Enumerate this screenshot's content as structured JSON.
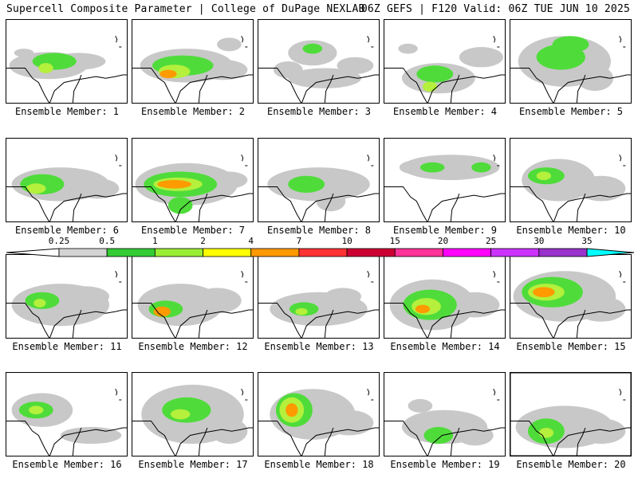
{
  "header": {
    "left": "Supercell Composite Parameter | College of DuPage NEXLAB",
    "right": "06Z GEFS | F120 Valid: 06Z TUE JUN 10 2025"
  },
  "panels": [
    {
      "label": "Ensemble Member: 1",
      "col": 0,
      "row": 0,
      "blobs": [
        [
          0.35,
          0.55,
          0.32,
          0.16,
          1
        ],
        [
          0.4,
          0.5,
          0.18,
          0.1,
          2
        ],
        [
          0.33,
          0.58,
          0.06,
          0.06,
          3
        ],
        [
          0.6,
          0.5,
          0.22,
          0.1,
          1
        ],
        [
          0.15,
          0.4,
          0.08,
          0.05,
          1
        ]
      ]
    },
    {
      "label": "Ensemble Member: 2",
      "col": 1,
      "row": 0,
      "blobs": [
        [
          0.45,
          0.55,
          0.38,
          0.2,
          1
        ],
        [
          0.42,
          0.55,
          0.25,
          0.12,
          2
        ],
        [
          0.35,
          0.62,
          0.13,
          0.08,
          3
        ],
        [
          0.3,
          0.65,
          0.07,
          0.05,
          4
        ],
        [
          0.75,
          0.6,
          0.2,
          0.12,
          1
        ],
        [
          0.8,
          0.3,
          0.1,
          0.08,
          1
        ]
      ]
    },
    {
      "label": "Ensemble Member: 3",
      "col": 2,
      "row": 0,
      "blobs": [
        [
          0.45,
          0.4,
          0.2,
          0.15,
          1
        ],
        [
          0.45,
          0.35,
          0.08,
          0.06,
          2
        ],
        [
          0.55,
          0.7,
          0.3,
          0.12,
          1
        ],
        [
          0.25,
          0.6,
          0.12,
          0.1,
          1
        ],
        [
          0.8,
          0.55,
          0.15,
          0.1,
          1
        ]
      ]
    },
    {
      "label": "Ensemble Member: 4",
      "col": 3,
      "row": 0,
      "blobs": [
        [
          0.45,
          0.7,
          0.3,
          0.18,
          1
        ],
        [
          0.42,
          0.65,
          0.15,
          0.1,
          2
        ],
        [
          0.38,
          0.8,
          0.06,
          0.06,
          3
        ],
        [
          0.8,
          0.45,
          0.18,
          0.12,
          1
        ],
        [
          0.2,
          0.35,
          0.08,
          0.06,
          1
        ]
      ]
    },
    {
      "label": "Ensemble Member: 5",
      "col": 4,
      "row": 0,
      "blobs": [
        [
          0.45,
          0.5,
          0.38,
          0.3,
          1
        ],
        [
          0.42,
          0.45,
          0.2,
          0.15,
          2
        ],
        [
          0.5,
          0.3,
          0.15,
          0.1,
          2
        ],
        [
          0.7,
          0.7,
          0.15,
          0.15,
          1
        ]
      ]
    },
    {
      "label": "Ensemble Member: 6",
      "col": 0,
      "row": 1,
      "blobs": [
        [
          0.45,
          0.55,
          0.4,
          0.2,
          1
        ],
        [
          0.3,
          0.55,
          0.18,
          0.12,
          2
        ],
        [
          0.25,
          0.6,
          0.08,
          0.06,
          3
        ],
        [
          0.75,
          0.6,
          0.18,
          0.12,
          1
        ]
      ]
    },
    {
      "label": "Ensemble Member: 7",
      "col": 1,
      "row": 1,
      "blobs": [
        [
          0.45,
          0.55,
          0.42,
          0.25,
          1
        ],
        [
          0.4,
          0.55,
          0.3,
          0.15,
          2
        ],
        [
          0.38,
          0.55,
          0.2,
          0.08,
          3
        ],
        [
          0.35,
          0.55,
          0.14,
          0.05,
          4
        ],
        [
          0.4,
          0.8,
          0.1,
          0.1,
          2
        ],
        [
          0.8,
          0.5,
          0.15,
          0.1,
          1
        ]
      ]
    },
    {
      "label": "Ensemble Member: 8",
      "col": 2,
      "row": 1,
      "blobs": [
        [
          0.5,
          0.55,
          0.42,
          0.2,
          1
        ],
        [
          0.4,
          0.55,
          0.15,
          0.1,
          2
        ],
        [
          0.6,
          0.75,
          0.12,
          0.12,
          1
        ]
      ]
    },
    {
      "label": "Ensemble Member: 9",
      "col": 3,
      "row": 1,
      "blobs": [
        [
          0.55,
          0.35,
          0.4,
          0.15,
          1
        ],
        [
          0.4,
          0.35,
          0.1,
          0.06,
          2
        ],
        [
          0.8,
          0.35,
          0.08,
          0.06,
          2
        ],
        [
          0.25,
          0.35,
          0.12,
          0.08,
          1
        ]
      ]
    },
    {
      "label": "Ensemble Member: 10",
      "col": 4,
      "row": 1,
      "blobs": [
        [
          0.4,
          0.5,
          0.3,
          0.25,
          1
        ],
        [
          0.3,
          0.45,
          0.15,
          0.1,
          2
        ],
        [
          0.28,
          0.45,
          0.06,
          0.05,
          3
        ],
        [
          0.75,
          0.6,
          0.2,
          0.15,
          1
        ]
      ]
    },
    {
      "label": "Ensemble Member: 11",
      "col": 0,
      "row": 2,
      "blobs": [
        [
          0.45,
          0.6,
          0.4,
          0.25,
          1
        ],
        [
          0.3,
          0.55,
          0.14,
          0.1,
          2
        ],
        [
          0.28,
          0.58,
          0.05,
          0.05,
          3
        ],
        [
          0.65,
          0.5,
          0.2,
          0.12,
          1
        ]
      ]
    },
    {
      "label": "Ensemble Member: 12",
      "col": 1,
      "row": 2,
      "blobs": [
        [
          0.4,
          0.6,
          0.35,
          0.25,
          1
        ],
        [
          0.28,
          0.65,
          0.14,
          0.1,
          2
        ],
        [
          0.25,
          0.68,
          0.07,
          0.06,
          4
        ],
        [
          0.7,
          0.55,
          0.2,
          0.15,
          1
        ]
      ]
    },
    {
      "label": "Ensemble Member: 13",
      "col": 2,
      "row": 2,
      "blobs": [
        [
          0.5,
          0.65,
          0.4,
          0.2,
          1
        ],
        [
          0.38,
          0.65,
          0.12,
          0.08,
          2
        ],
        [
          0.36,
          0.68,
          0.05,
          0.04,
          3
        ],
        [
          0.7,
          0.5,
          0.15,
          0.1,
          1
        ]
      ]
    },
    {
      "label": "Ensemble Member: 14",
      "col": 3,
      "row": 2,
      "blobs": [
        [
          0.4,
          0.6,
          0.35,
          0.3,
          1
        ],
        [
          0.38,
          0.6,
          0.22,
          0.18,
          2
        ],
        [
          0.35,
          0.62,
          0.12,
          0.1,
          3
        ],
        [
          0.32,
          0.65,
          0.06,
          0.05,
          4
        ],
        [
          0.75,
          0.6,
          0.2,
          0.15,
          1
        ]
      ]
    },
    {
      "label": "Ensemble Member: 15",
      "col": 4,
      "row": 2,
      "blobs": [
        [
          0.45,
          0.5,
          0.42,
          0.3,
          1
        ],
        [
          0.35,
          0.45,
          0.25,
          0.18,
          2
        ],
        [
          0.3,
          0.45,
          0.15,
          0.1,
          3
        ],
        [
          0.28,
          0.45,
          0.09,
          0.06,
          4
        ],
        [
          0.75,
          0.65,
          0.2,
          0.15,
          1
        ]
      ]
    },
    {
      "label": "Ensemble Member: 16",
      "col": 0,
      "row": 3,
      "blobs": [
        [
          0.3,
          0.45,
          0.25,
          0.2,
          1
        ],
        [
          0.25,
          0.45,
          0.14,
          0.1,
          2
        ],
        [
          0.25,
          0.45,
          0.06,
          0.05,
          3
        ],
        [
          0.7,
          0.75,
          0.25,
          0.1,
          1
        ]
      ]
    },
    {
      "label": "Ensemble Member: 17",
      "col": 1,
      "row": 3,
      "blobs": [
        [
          0.5,
          0.5,
          0.42,
          0.35,
          1
        ],
        [
          0.45,
          0.45,
          0.2,
          0.15,
          2
        ],
        [
          0.4,
          0.5,
          0.08,
          0.06,
          3
        ],
        [
          0.8,
          0.7,
          0.15,
          0.15,
          1
        ]
      ]
    },
    {
      "label": "Ensemble Member: 18",
      "col": 2,
      "row": 3,
      "blobs": [
        [
          0.45,
          0.5,
          0.35,
          0.3,
          1
        ],
        [
          0.3,
          0.45,
          0.15,
          0.2,
          2
        ],
        [
          0.28,
          0.45,
          0.1,
          0.15,
          3
        ],
        [
          0.28,
          0.45,
          0.05,
          0.08,
          4
        ],
        [
          0.75,
          0.6,
          0.2,
          0.15,
          1
        ]
      ]
    },
    {
      "label": "Ensemble Member: 19",
      "col": 3,
      "row": 3,
      "blobs": [
        [
          0.5,
          0.65,
          0.35,
          0.2,
          1
        ],
        [
          0.45,
          0.75,
          0.12,
          0.1,
          2
        ],
        [
          0.75,
          0.75,
          0.15,
          0.12,
          1
        ],
        [
          0.3,
          0.4,
          0.1,
          0.08,
          1
        ]
      ]
    },
    {
      "label": "Ensemble Member: 20",
      "col": 4,
      "row": 3,
      "blobs": [
        [
          0.45,
          0.65,
          0.4,
          0.25,
          1
        ],
        [
          0.3,
          0.7,
          0.15,
          0.15,
          2
        ],
        [
          0.3,
          0.72,
          0.06,
          0.06,
          3
        ],
        [
          0.75,
          0.7,
          0.2,
          0.15,
          1
        ]
      ]
    }
  ],
  "colorbar": {
    "labels": [
      "0.25",
      "0.5",
      "1",
      "2",
      "4",
      "7",
      "10",
      "15",
      "20",
      "25",
      "30",
      "35"
    ],
    "colors": [
      "#d3d3d3",
      "#33cc33",
      "#99ee33",
      "#ffff00",
      "#ff9900",
      "#ff3333",
      "#cc0033",
      "#ff3399",
      "#ff00ff",
      "#cc33ff",
      "#9933cc",
      "#00ffff"
    ]
  },
  "levels_colors": [
    "#c8c8c8",
    "#4fdc3a",
    "#b4f03c",
    "#ff9a00",
    "#dd0000"
  ],
  "highlight_panel": "Ensemble Member: 20"
}
